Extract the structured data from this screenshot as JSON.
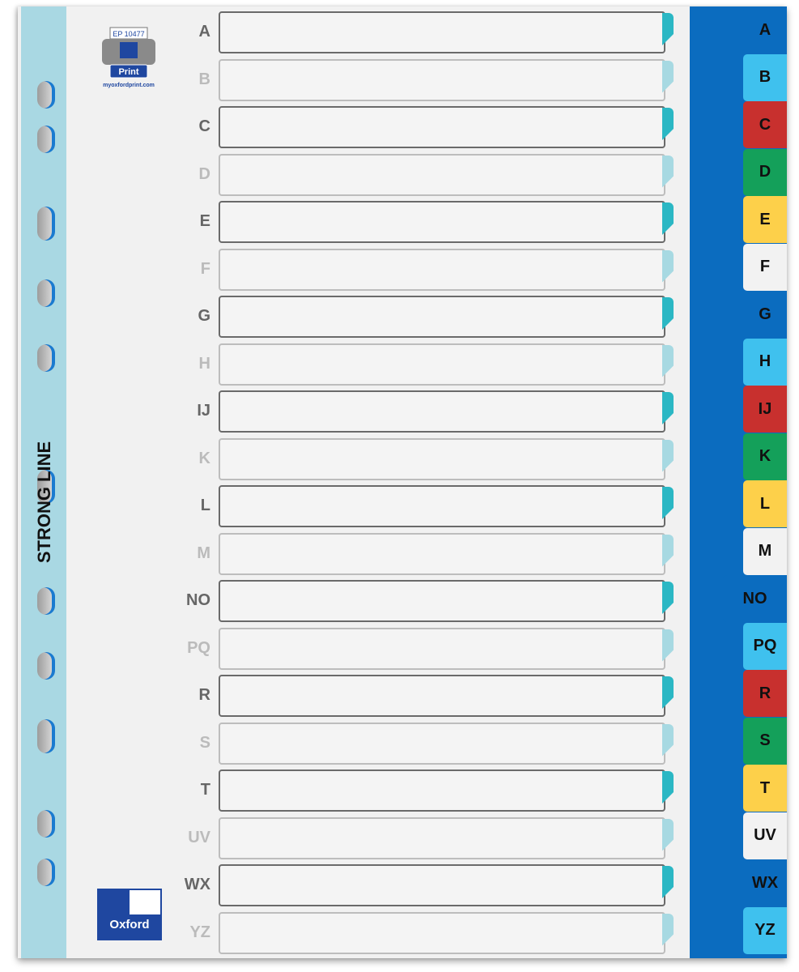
{
  "brand": {
    "strip_text": "STRONG LINE",
    "registered": "®",
    "oxford_logo_text": "Oxford"
  },
  "print_badge": {
    "code": "EP 10477",
    "label": "Print",
    "url": "myoxfordprint.com"
  },
  "colors": {
    "panel": "#0b6cbf",
    "strip": "#a9d8e3",
    "dark_notch": "#2bb7c4",
    "light_notch": "#a7d9e2"
  },
  "rows": [
    "A",
    "B",
    "C",
    "D",
    "E",
    "F",
    "G",
    "H",
    "IJ",
    "K",
    "L",
    "M",
    "NO",
    "PQ",
    "R",
    "S",
    "T",
    "UV",
    "WX",
    "YZ"
  ],
  "tabs": [
    {
      "label": "A",
      "color": "#0b6cbf"
    },
    {
      "label": "B",
      "color": "#3fc1ee"
    },
    {
      "label": "C",
      "color": "#c8302e"
    },
    {
      "label": "D",
      "color": "#14a05a"
    },
    {
      "label": "E",
      "color": "#fdd04a"
    },
    {
      "label": "F",
      "color": "#f2f2f2"
    },
    {
      "label": "G",
      "color": "#0b6cbf"
    },
    {
      "label": "H",
      "color": "#3fc1ee"
    },
    {
      "label": "IJ",
      "color": "#c8302e"
    },
    {
      "label": "K",
      "color": "#14a05a"
    },
    {
      "label": "L",
      "color": "#fdd04a"
    },
    {
      "label": "M",
      "color": "#f2f2f2"
    },
    {
      "label": "NO",
      "color": "#0b6cbf"
    },
    {
      "label": "PQ",
      "color": "#3fc1ee"
    },
    {
      "label": "R",
      "color": "#c8302e"
    },
    {
      "label": "S",
      "color": "#14a05a"
    },
    {
      "label": "T",
      "color": "#fdd04a"
    },
    {
      "label": "UV",
      "color": "#f2f2f2"
    },
    {
      "label": "WX",
      "color": "#0b6cbf"
    },
    {
      "label": "YZ",
      "color": "#3fc1ee"
    }
  ]
}
